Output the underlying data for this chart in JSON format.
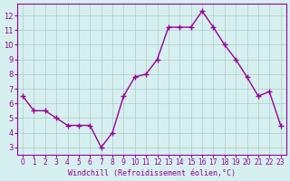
{
  "x": [
    0,
    1,
    2,
    3,
    4,
    5,
    6,
    7,
    8,
    9,
    10,
    11,
    12,
    13,
    14,
    15,
    16,
    17,
    18,
    19,
    20,
    21,
    22,
    23
  ],
  "y": [
    6.5,
    5.5,
    5.5,
    5.0,
    4.5,
    4.5,
    4.5,
    3.0,
    4.0,
    6.5,
    7.8,
    8.0,
    9.0,
    11.2,
    11.2,
    11.2,
    12.3,
    11.2,
    10.0,
    9.0,
    7.8,
    6.5,
    6.8,
    4.5
  ],
  "line_color": "#990099",
  "marker": "+",
  "bg_color": "#d6f0f0",
  "grid_color": "#b0c8c8",
  "xlabel": "Windchill (Refroidissement éolien,°C)",
  "xlim": [
    -0.5,
    23.5
  ],
  "ylim": [
    2.5,
    12.8
  ],
  "xticks": [
    0,
    1,
    2,
    3,
    4,
    5,
    6,
    7,
    8,
    9,
    10,
    11,
    12,
    13,
    14,
    15,
    16,
    17,
    18,
    19,
    20,
    21,
    22,
    23
  ],
  "yticks": [
    3,
    4,
    5,
    6,
    7,
    8,
    9,
    10,
    11,
    12
  ],
  "axis_color": "#990099",
  "tick_color": "#990099",
  "label_color": "#990099"
}
